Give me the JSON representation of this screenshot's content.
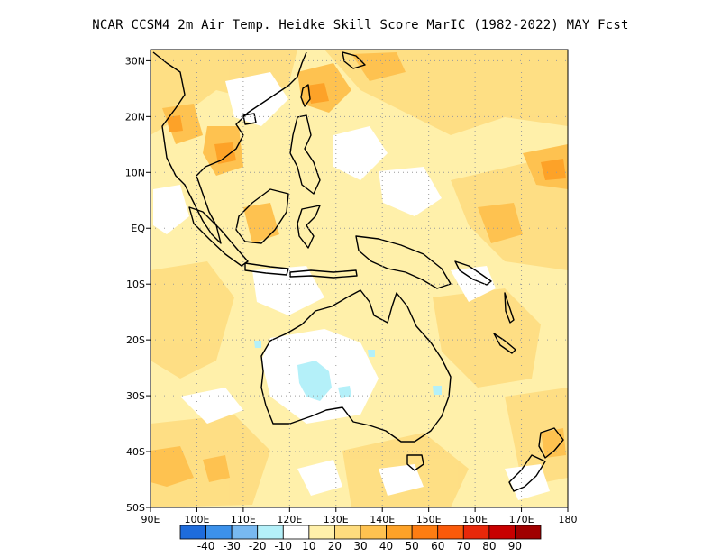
{
  "title": "NCAR_CCSM4  2m Air Temp. Heidke Skill Score MarIC (1982-2022) MAY Fcst",
  "map": {
    "lon_range": [
      90,
      180
    ],
    "lat_range": [
      -50,
      32
    ],
    "lon_ticks": [
      {
        "value": 90,
        "label": "90E"
      },
      {
        "value": 100,
        "label": "100E"
      },
      {
        "value": 110,
        "label": "110E"
      },
      {
        "value": 120,
        "label": "120E"
      },
      {
        "value": 130,
        "label": "130E"
      },
      {
        "value": 140,
        "label": "140E"
      },
      {
        "value": 150,
        "label": "150E"
      },
      {
        "value": 160,
        "label": "160E"
      },
      {
        "value": 170,
        "label": "170E"
      },
      {
        "value": 180,
        "label": "180"
      }
    ],
    "lat_ticks": [
      {
        "value": 30,
        "label": "30N"
      },
      {
        "value": 20,
        "label": "20N"
      },
      {
        "value": 10,
        "label": "10N"
      },
      {
        "value": 0,
        "label": "EQ"
      },
      {
        "value": -10,
        "label": "10S"
      },
      {
        "value": -20,
        "label": "20S"
      },
      {
        "value": -30,
        "label": "30S"
      },
      {
        "value": -40,
        "label": "40S"
      },
      {
        "value": -50,
        "label": "50S"
      }
    ],
    "grid": "dotted"
  },
  "colorbar": {
    "colors": [
      "#1e6cdc",
      "#3c91ea",
      "#78b9f1",
      "#b4f0f9",
      "#ffffff",
      "#fff0aa",
      "#fedc7e",
      "#fec250",
      "#fda228",
      "#fd7d12",
      "#fa5a0a",
      "#e8280a",
      "#c80000",
      "#a00000"
    ],
    "labels": [
      "-40",
      "-30",
      "-20",
      "-10",
      "10",
      "20",
      "30",
      "40",
      "50",
      "60",
      "70",
      "80",
      "90"
    ]
  },
  "colors": {
    "land_outline": "#000000",
    "background": "#ffffff"
  }
}
